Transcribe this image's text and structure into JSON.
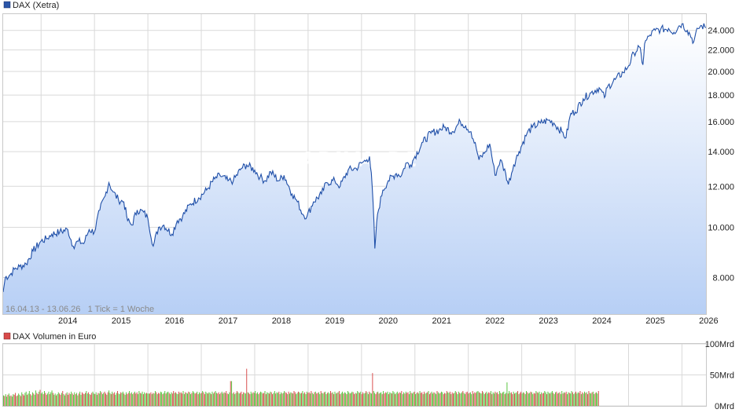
{
  "colors": {
    "line": "#1f4fa8",
    "area_top": "#ffffff",
    "area_bottom": "#b7cff5",
    "grid": "#d9d9d9",
    "volume_up": "#55c23a",
    "volume_down": "#d84a4a",
    "price_swatch": "#2b56a8",
    "volume_swatch": "#d84a4a"
  },
  "watermark": "ARIVA.DE",
  "chart_data": [
    {
      "type": "line",
      "legend": "DAX (Xetra)",
      "note": "16.04.13 - 13.06.26   1 Tick = 1 Woche",
      "y_scale": "log",
      "ylim": [
        6800,
        25800
      ],
      "y_ticks": [
        {
          "value": 8000,
          "label": "8.000"
        },
        {
          "value": 10000,
          "label": "10.000"
        },
        {
          "value": 12000,
          "label": "12.000"
        },
        {
          "value": 14000,
          "label": "14.000"
        },
        {
          "value": 16000,
          "label": "16.000"
        },
        {
          "value": 18000,
          "label": "18.000"
        },
        {
          "value": 20000,
          "label": "20.000"
        },
        {
          "value": 22000,
          "label": "22.000"
        },
        {
          "value": 24000,
          "label": "24.000"
        }
      ],
      "x_range": [
        2013.29,
        2026.45
      ],
      "x_ticks": [
        "2014",
        "2015",
        "2016",
        "2017",
        "2018",
        "2019",
        "2020",
        "2021",
        "2022",
        "2023",
        "2024",
        "2025",
        "2026"
      ],
      "grid": true,
      "legend_position": "top-left",
      "x": [
        2013.29,
        2013.33,
        2013.42,
        2013.5,
        2013.6,
        2013.72,
        2013.85,
        2014.0,
        2014.1,
        2014.2,
        2014.35,
        2014.5,
        2014.6,
        2014.7,
        2014.8,
        2014.9,
        2015.0,
        2015.1,
        2015.2,
        2015.27,
        2015.35,
        2015.45,
        2015.55,
        2015.62,
        2015.7,
        2015.8,
        2015.92,
        2016.0,
        2016.1,
        2016.2,
        2016.3,
        2016.45,
        2016.55,
        2016.65,
        2016.8,
        2016.95,
        2017.1,
        2017.25,
        2017.35,
        2017.5,
        2017.6,
        2017.75,
        2017.85,
        2018.0,
        2018.1,
        2018.2,
        2018.3,
        2018.45,
        2018.55,
        2018.7,
        2018.8,
        2018.9,
        2018.98,
        2019.1,
        2019.25,
        2019.35,
        2019.5,
        2019.6,
        2019.75,
        2019.9,
        2020.0,
        2020.1,
        2020.15,
        2020.2,
        2020.25,
        2020.3,
        2020.4,
        2020.5,
        2020.65,
        2020.75,
        2020.83,
        2020.92,
        2021.0,
        2021.15,
        2021.3,
        2021.45,
        2021.55,
        2021.7,
        2021.85,
        2021.95,
        2022.05,
        2022.15,
        2022.2,
        2022.3,
        2022.4,
        2022.5,
        2022.6,
        2022.7,
        2022.75,
        2022.85,
        2022.95,
        2023.1,
        2023.2,
        2023.35,
        2023.5,
        2023.6,
        2023.75,
        2023.83,
        2023.92,
        2024.0,
        2024.15,
        2024.3,
        2024.45,
        2024.55,
        2024.6,
        2024.75,
        2024.9,
        2025.0,
        2025.1,
        2025.2,
        2025.27,
        2025.3,
        2025.4,
        2025.5,
        2025.6,
        2025.75,
        2025.85,
        2025.95,
        2026.0,
        2026.1,
        2026.15,
        2026.22,
        2026.3,
        2026.37,
        2026.45
      ],
      "y": [
        7500,
        8000,
        8100,
        8300,
        8400,
        8500,
        9000,
        9400,
        9500,
        9700,
        9800,
        9900,
        9200,
        9400,
        9300,
        9900,
        9800,
        10800,
        11500,
        12200,
        11700,
        11300,
        11200,
        10300,
        10100,
        10800,
        10700,
        10400,
        9200,
        10000,
        10100,
        9700,
        10300,
        10500,
        11100,
        11400,
        11800,
        12400,
        12600,
        12300,
        12300,
        13000,
        13200,
        12900,
        12500,
        12300,
        12800,
        12300,
        12600,
        11600,
        11200,
        10600,
        10500,
        11200,
        11600,
        12200,
        12300,
        12000,
        12900,
        13000,
        13300,
        13500,
        13700,
        12000,
        9100,
        10600,
        11800,
        12300,
        12700,
        12600,
        13300,
        13200,
        13700,
        14600,
        15200,
        15400,
        15600,
        15300,
        16000,
        15700,
        15300,
        14200,
        13500,
        13900,
        14500,
        12600,
        13500,
        12700,
        12100,
        13200,
        14000,
        15200,
        15600,
        15900,
        16100,
        15900,
        15300,
        14900,
        16600,
        16700,
        17700,
        18200,
        18600,
        17800,
        18600,
        19300,
        19900,
        20500,
        21700,
        22300,
        20600,
        22600,
        23500,
        24000,
        24100,
        24200,
        23800,
        24500,
        24700,
        24000,
        23600,
        22800,
        24200,
        24500,
        24300
      ]
    },
    {
      "type": "bar",
      "legend": "DAX Volumen in Euro",
      "ylim": [
        0,
        100
      ],
      "y_ticks": [
        {
          "value": 0,
          "label": "0Mrd"
        },
        {
          "value": 50,
          "label": "50Mrd"
        },
        {
          "value": 100,
          "label": "100Mrd"
        }
      ],
      "grid": true,
      "legend_position": "top-left",
      "x_range": [
        2013.29,
        2026.45
      ],
      "x_start": 2013.29,
      "x_end": 2024.45,
      "peaks": [
        {
          "x": 2016.0,
          "value": 20
        },
        {
          "x": 2017.55,
          "value": 40
        },
        {
          "x": 2017.85,
          "value": 60
        },
        {
          "x": 2020.2,
          "value": 53
        },
        {
          "x": 2022.18,
          "value": 24
        },
        {
          "x": 2022.72,
          "value": 38
        }
      ],
      "values": [
        17,
        16,
        19,
        15,
        18,
        20,
        16,
        17,
        15,
        19,
        18,
        21,
        16,
        17,
        20,
        18,
        16,
        22,
        19,
        17,
        21,
        23,
        18,
        20,
        24,
        19,
        17,
        22,
        20,
        18,
        25,
        21,
        19,
        23,
        26,
        20,
        22,
        19,
        24,
        21,
        18,
        20,
        23,
        19,
        22,
        25,
        21,
        18,
        20,
        17,
        19,
        22,
        20,
        18,
        21,
        24,
        19,
        17,
        20,
        22,
        18,
        21,
        19,
        23,
        20,
        18,
        22,
        19,
        21,
        17,
        20,
        23,
        18,
        22,
        20,
        19,
        21,
        24,
        20,
        22,
        19,
        18,
        21,
        23,
        20,
        19,
        22,
        18,
        21,
        20,
        24,
        22,
        19,
        21,
        23,
        20,
        18,
        22,
        25,
        21,
        19,
        23,
        20,
        22,
        18,
        21,
        24,
        20,
        19,
        22,
        21,
        23,
        20,
        18,
        22,
        19,
        21,
        24,
        20,
        22,
        19,
        21,
        23,
        20,
        22,
        19,
        24,
        21,
        20,
        23,
        19,
        22,
        20,
        21,
        18,
        23,
        20,
        22,
        19,
        21,
        20,
        24,
        22,
        19,
        21,
        20,
        23,
        22,
        19,
        21,
        24,
        20,
        22,
        23,
        21,
        19,
        22,
        20,
        24,
        21,
        22,
        20,
        19,
        23,
        21,
        22,
        20,
        24,
        19,
        22,
        21,
        20,
        23,
        22,
        19,
        21,
        24,
        22,
        20,
        21,
        23,
        19,
        22,
        20,
        21,
        24,
        22,
        19,
        23,
        21,
        20,
        22,
        21,
        19,
        23,
        20,
        22,
        24,
        21,
        20,
        22,
        19,
        21,
        23,
        20,
        22,
        21,
        24,
        20,
        19,
        22,
        21,
        23,
        20,
        22,
        19,
        21,
        24,
        22,
        20,
        21,
        23,
        19,
        22,
        21,
        20,
        24,
        22,
        21,
        19,
        23,
        20,
        22,
        21,
        24,
        20,
        22,
        19,
        21,
        23,
        22,
        20,
        21,
        24,
        19,
        22,
        21,
        20,
        23,
        22,
        19,
        21,
        24,
        20,
        22,
        21,
        23,
        19,
        22,
        20,
        21,
        24,
        22,
        21,
        19,
        23,
        20,
        22,
        21,
        20,
        24,
        22,
        19,
        21,
        23,
        22,
        20,
        21,
        24,
        20,
        22,
        19,
        23,
        21,
        22,
        20,
        24,
        21,
        19,
        22,
        23,
        20,
        21,
        22,
        19,
        24,
        21,
        20,
        22,
        23,
        19,
        21,
        22,
        20,
        24,
        21,
        22,
        19,
        23,
        20,
        21,
        22,
        24,
        19,
        21,
        23,
        20,
        22,
        21,
        19,
        24,
        22,
        20,
        21,
        23,
        22,
        19,
        21,
        20,
        24,
        22,
        21,
        23,
        19,
        22,
        20,
        21,
        24,
        22,
        19,
        23,
        21,
        20,
        22,
        24,
        21,
        19,
        22,
        23,
        20,
        21,
        22,
        19,
        24,
        20,
        22,
        21,
        23,
        19,
        22,
        21,
        20,
        24,
        22,
        19,
        21,
        23,
        20,
        22,
        21,
        24,
        19,
        22,
        20,
        23,
        21,
        22,
        19,
        24,
        21,
        20,
        22,
        23,
        19,
        21,
        22,
        20,
        24,
        21,
        22,
        19,
        23,
        20,
        21,
        22,
        24,
        19,
        21,
        23,
        20,
        22,
        21,
        19,
        24,
        22,
        20,
        21,
        23,
        22,
        19,
        21,
        20,
        24,
        22,
        21,
        23,
        19,
        22,
        20,
        21,
        24,
        22,
        19,
        23,
        21,
        20,
        22,
        24,
        21,
        19,
        22,
        23,
        20,
        21,
        22,
        19,
        24,
        20,
        22,
        21,
        23,
        19,
        22,
        21,
        20,
        24,
        22,
        19,
        21,
        23,
        20,
        22,
        21,
        24,
        19,
        22,
        20,
        23,
        21,
        22,
        19,
        24,
        21,
        20,
        22,
        23,
        19,
        21,
        22,
        20,
        24,
        21,
        22,
        19,
        23,
        20,
        21,
        22,
        24,
        19,
        21,
        23,
        20,
        22,
        21,
        19,
        24,
        22,
        20,
        21,
        23,
        22,
        19,
        21,
        20,
        24,
        22,
        21,
        23,
        19,
        22,
        20,
        21,
        24,
        22,
        19,
        23,
        21,
        20,
        22,
        24,
        21,
        19,
        22,
        23,
        20,
        21,
        22,
        19,
        24,
        20,
        22,
        21,
        23,
        19,
        22,
        21,
        20,
        24,
        22,
        19,
        21,
        23,
        20,
        22,
        21,
        24,
        19,
        22,
        20,
        23,
        21,
        22,
        19,
        24,
        21,
        20,
        22,
        23,
        19,
        21,
        22,
        20,
        24
      ]
    }
  ]
}
